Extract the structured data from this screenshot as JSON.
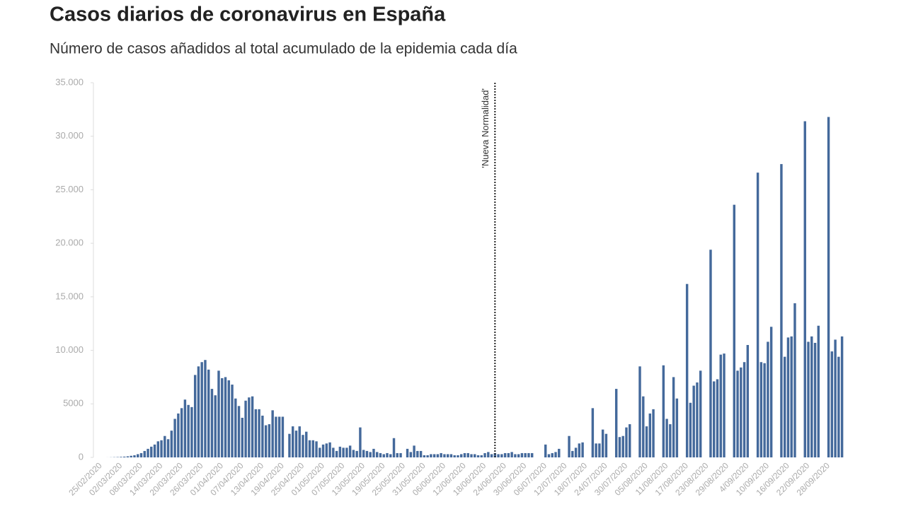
{
  "chart_data": {
    "type": "bar",
    "title": "Casos diarios de coronavirus en España",
    "subtitle": "Número de casos añadidos al total acumulado de la epidemia cada día",
    "categories": [
      "25/02/2020",
      null,
      null,
      null,
      null,
      null,
      "02/03/2020",
      null,
      null,
      null,
      null,
      null,
      "08/03/2020",
      null,
      null,
      null,
      null,
      null,
      "14/03/2020",
      null,
      null,
      null,
      null,
      null,
      "20/03/2020",
      null,
      null,
      null,
      null,
      null,
      "26/03/2020",
      null,
      null,
      null,
      null,
      null,
      "01/04/2020",
      null,
      null,
      null,
      null,
      null,
      "07/04/2020",
      null,
      null,
      null,
      null,
      null,
      "13/04/2020",
      null,
      null,
      null,
      null,
      null,
      "19/04/2020",
      null,
      null,
      null,
      null,
      null,
      "25/04/2020",
      null,
      null,
      null,
      null,
      null,
      "01/05/2020",
      null,
      null,
      null,
      null,
      null,
      "07/05/2020",
      null,
      null,
      null,
      null,
      null,
      "13/05/2020",
      null,
      null,
      null,
      null,
      null,
      "19/05/2020",
      null,
      null,
      null,
      null,
      null,
      "25/05/2020",
      null,
      null,
      null,
      null,
      null,
      "31/05/2020",
      null,
      null,
      null,
      null,
      null,
      "06/06/2020",
      null,
      null,
      null,
      null,
      null,
      "12/06/2020",
      null,
      null,
      null,
      null,
      null,
      "18/06/2020",
      null,
      null,
      null,
      null,
      null,
      "24/06/2020",
      null,
      null,
      null,
      null,
      null,
      "30/06/2020",
      null,
      null,
      null,
      null,
      null,
      "06/07/2020",
      null,
      null,
      null,
      null,
      null,
      "12/07/2020",
      null,
      null,
      null,
      null,
      null,
      "18/07/2020",
      null,
      null,
      null,
      null,
      null,
      "24/07/2020",
      null,
      null,
      null,
      null,
      null,
      "30/07/2020",
      null,
      null,
      null,
      null,
      null,
      "05/08/2020",
      null,
      null,
      null,
      null,
      null,
      "11/08/2020",
      null,
      null,
      null,
      null,
      null,
      "17/08/2020",
      null,
      null,
      null,
      null,
      null,
      "23/08/2020",
      null,
      null,
      null,
      null,
      null,
      "29/08/2020",
      null,
      null,
      null,
      null,
      null,
      "4/09/2020",
      null,
      null,
      null,
      null,
      null,
      "10/09/2020",
      null,
      null,
      null,
      null,
      null,
      "16/09/2020",
      null,
      null,
      null,
      null,
      null,
      "22/09/2020",
      null,
      null,
      null,
      null,
      null,
      "28/09/2020",
      null,
      null,
      null,
      null
    ],
    "values": [
      0,
      0,
      3,
      10,
      20,
      30,
      50,
      70,
      100,
      150,
      200,
      300,
      400,
      600,
      800,
      1000,
      1200,
      1500,
      1600,
      2000,
      1700,
      2500,
      3600,
      4100,
      4600,
      5400,
      4900,
      4700,
      7700,
      8500,
      8900,
      9100,
      8200,
      6400,
      5800,
      8100,
      7400,
      7500,
      7200,
      6800,
      5500,
      4800,
      3700,
      5300,
      5600,
      5700,
      4500,
      4500,
      3900,
      3000,
      3100,
      4400,
      3800,
      3800,
      3800,
      0,
      2200,
      2900,
      2500,
      2900,
      2100,
      2400,
      1600,
      1600,
      1500,
      900,
      1200,
      1300,
      1400,
      900,
      600,
      1000,
      900,
      900,
      1100,
      700,
      600,
      2800,
      700,
      600,
      500,
      800,
      500,
      400,
      300,
      400,
      300,
      1800,
      400,
      400,
      0,
      800,
      500,
      1100,
      600,
      600,
      200,
      200,
      300,
      300,
      300,
      400,
      300,
      300,
      300,
      200,
      200,
      300,
      400,
      400,
      300,
      300,
      200,
      200,
      400,
      500,
      300,
      400,
      300,
      300,
      400,
      400,
      500,
      300,
      300,
      400,
      400,
      400,
      400,
      0,
      0,
      0,
      1200,
      300,
      400,
      500,
      800,
      0,
      0,
      2000,
      600,
      900,
      1300,
      1400,
      0,
      0,
      4600,
      1300,
      1300,
      2600,
      2200,
      0,
      0,
      6400,
      1900,
      2000,
      2800,
      3100,
      0,
      0,
      8500,
      5700,
      2900,
      4100,
      4500,
      0,
      0,
      8600,
      3600,
      3100,
      7500,
      5500,
      0,
      0,
      16200,
      5100,
      6700,
      7000,
      8100,
      0,
      0,
      19400,
      7100,
      7300,
      9600,
      9700,
      0,
      0,
      23600,
      8100,
      8400,
      8900,
      10500,
      0,
      0,
      26600,
      8900,
      8800,
      10800,
      12200,
      0,
      0,
      27400,
      9400,
      11200,
      11300,
      14400,
      0,
      0,
      31400,
      10800,
      11300,
      10700,
      12300,
      0,
      0,
      31800,
      9900,
      11000,
      9400,
      11300
    ],
    "color": "#44699b",
    "ylim": [
      0,
      35000
    ],
    "yticks": [
      0,
      5000,
      {
        "value": 10000,
        "label": "10.000"
      },
      {
        "value": 15000,
        "label": "15.000"
      },
      {
        "value": 20000,
        "label": "20.000"
      },
      {
        "value": 25000,
        "label": "25.000"
      },
      {
        "value": 30000,
        "label": "30.000"
      },
      {
        "value": 35000,
        "label": "35.000"
      }
    ],
    "grid": false,
    "annotation": {
      "text": "'Nueva Normalidad'",
      "index": 117
    }
  }
}
